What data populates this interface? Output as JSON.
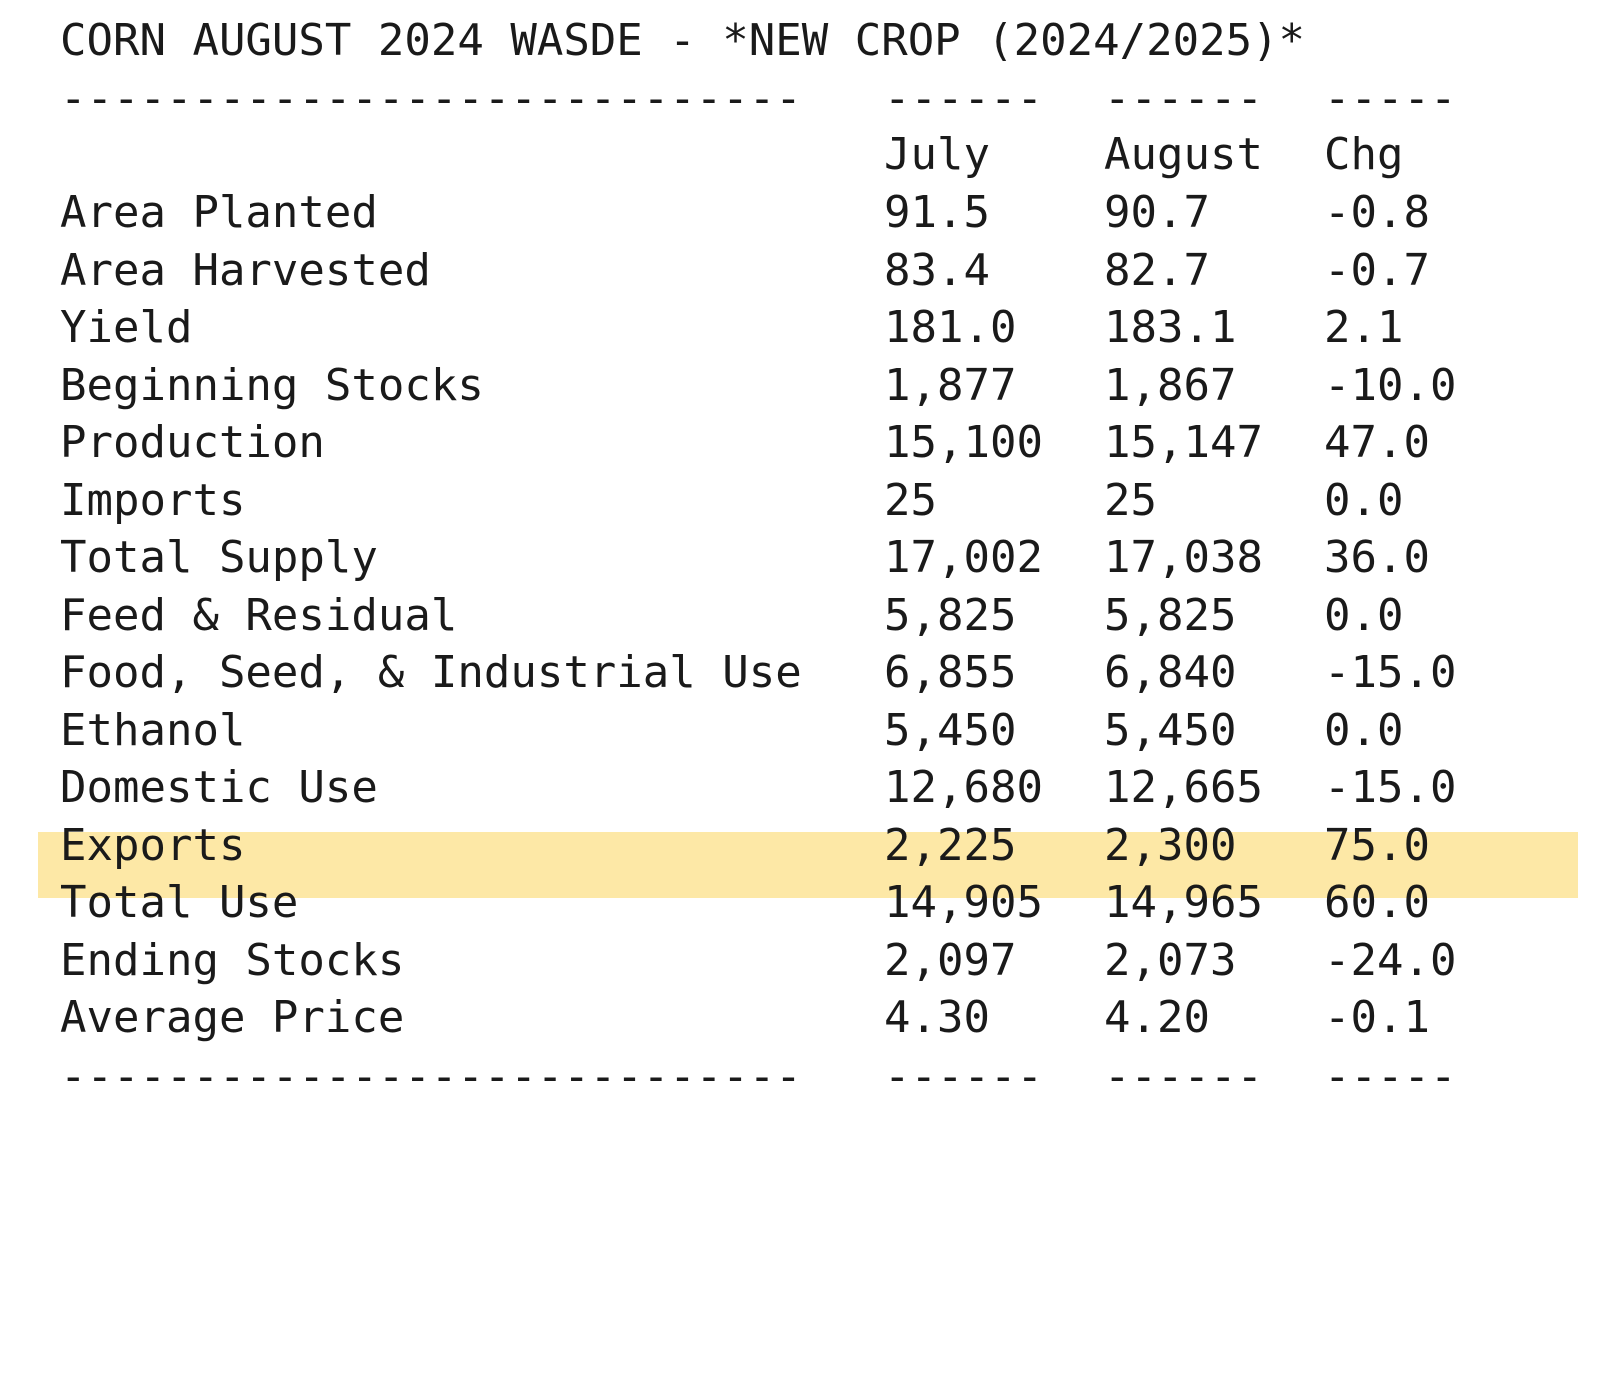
{
  "title": "CORN AUGUST 2024 WASDE - *NEW CROP (2024/2025)*",
  "rule": {
    "c0": "----------------------------",
    "c1": "------",
    "c2": "------",
    "c3": "-----"
  },
  "columns": {
    "label": "",
    "july": "July",
    "august": "August",
    "chg": "Chg"
  },
  "rows": [
    {
      "label": "Area Planted",
      "july": "91.5",
      "august": "90.7",
      "chg": "-0.8"
    },
    {
      "label": "Area Harvested",
      "july": "83.4",
      "august": "82.7",
      "chg": "-0.7"
    },
    {
      "label": "Yield",
      "july": "181.0",
      "august": "183.1",
      "chg": "2.1"
    },
    {
      "label": "Beginning Stocks",
      "july": "1,877",
      "august": "1,867",
      "chg": "-10.0"
    },
    {
      "label": "Production",
      "july": "15,100",
      "august": "15,147",
      "chg": "47.0"
    },
    {
      "label": "Imports",
      "july": "25",
      "august": "25",
      "chg": "0.0"
    },
    {
      "label": "Total Supply",
      "july": "17,002",
      "august": "17,038",
      "chg": "36.0"
    },
    {
      "label": "Feed & Residual",
      "july": "5,825",
      "august": "5,825",
      "chg": "0.0"
    },
    {
      "label": "Food, Seed, & Industrial Use",
      "july": "6,855",
      "august": "6,840",
      "chg": "-15.0"
    },
    {
      "label": "Ethanol",
      "july": "5,450",
      "august": "5,450",
      "chg": "0.0"
    },
    {
      "label": "Domestic Use",
      "july": "12,680",
      "august": "12,665",
      "chg": "-15.0"
    },
    {
      "label": "Exports",
      "july": "2,225",
      "august": "2,300",
      "chg": "75.0"
    },
    {
      "label": "Total Use",
      "july": "14,905",
      "august": "14,965",
      "chg": "60.0"
    },
    {
      "label": "Ending Stocks",
      "july": "2,097",
      "august": "2,073",
      "chg": "-24.0"
    },
    {
      "label": "Average Price",
      "july": "4.30",
      "august": "4.20",
      "chg": "-0.1"
    }
  ],
  "highlight_color": "#fde8a6",
  "text_color": "#1a1a1a"
}
